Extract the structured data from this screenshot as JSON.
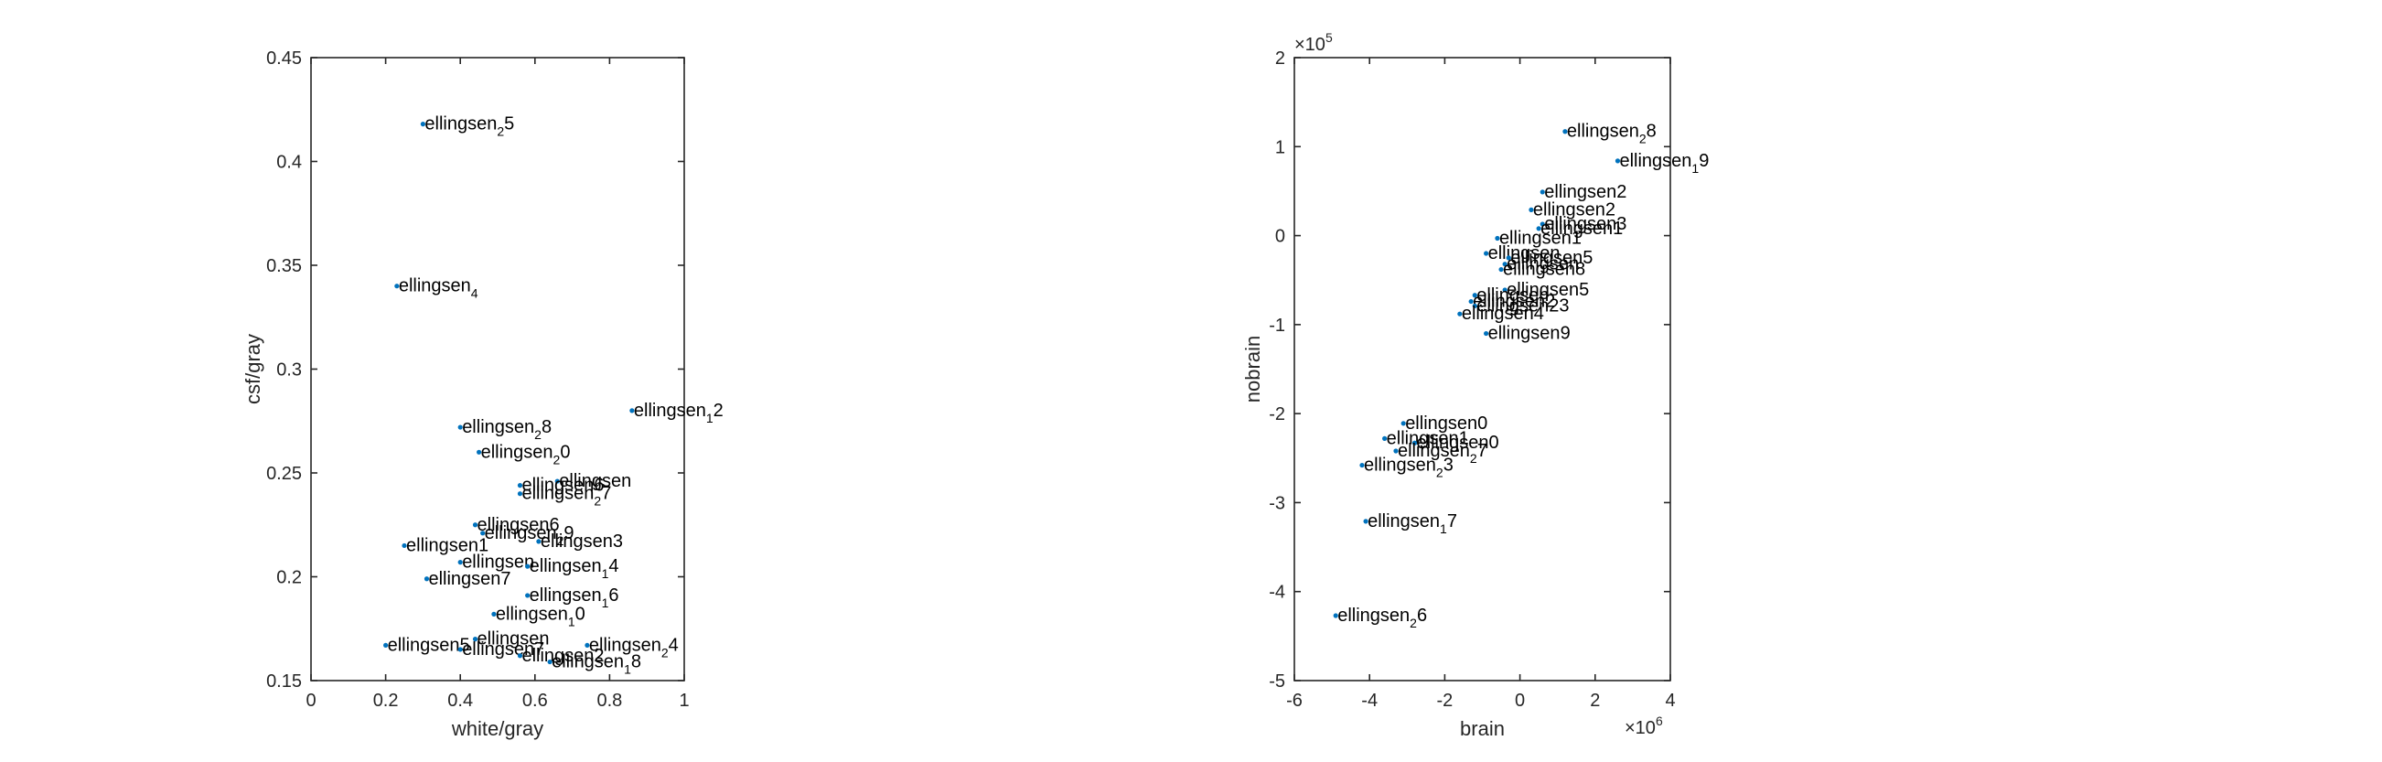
{
  "chart_data": [
    {
      "type": "scatter",
      "xlabel": "white/gray",
      "ylabel": "csf/gray",
      "xlim": [
        0,
        1
      ],
      "ylim": [
        0.15,
        0.45
      ],
      "xticks": [
        0,
        0.2,
        0.4,
        0.6,
        0.8,
        1
      ],
      "xtick_labels": [
        "0",
        "0.2",
        "0.4",
        "0.6",
        "0.8",
        "1"
      ],
      "yticks": [
        0.15,
        0.2,
        0.25,
        0.3,
        0.35,
        0.4,
        0.45
      ],
      "ytick_labels": [
        "0.15",
        "0.2",
        "0.25",
        "0.3",
        "0.35",
        "0.4",
        "0.45"
      ],
      "grid": false,
      "points": [
        {
          "x": 0.3,
          "y": 0.418,
          "label": "ellingsen",
          "sub": "2",
          "suffix": "5"
        },
        {
          "x": 0.23,
          "y": 0.34,
          "label": "ellingsen",
          "sub": "4",
          "suffix": ""
        },
        {
          "x": 0.86,
          "y": 0.28,
          "label": "ellingsen",
          "sub": "1",
          "suffix": "2"
        },
        {
          "x": 0.4,
          "y": 0.272,
          "label": "ellingsen",
          "sub": "2",
          "suffix": "8"
        },
        {
          "x": 0.45,
          "y": 0.26,
          "label": "ellingsen",
          "sub": "2",
          "suffix": "0"
        },
        {
          "x": 0.66,
          "y": 0.246,
          "label": "ellingsen",
          "sub": "",
          "suffix": ""
        },
        {
          "x": 0.56,
          "y": 0.244,
          "label": "ellingsen",
          "sub": "",
          "suffix": "6"
        },
        {
          "x": 0.56,
          "y": 0.24,
          "label": "ellingsen",
          "sub": "2",
          "suffix": "7"
        },
        {
          "x": 0.44,
          "y": 0.225,
          "label": "ellingsen",
          "sub": "",
          "suffix": "6"
        },
        {
          "x": 0.46,
          "y": 0.221,
          "label": "ellingsen",
          "sub": "2",
          "suffix": "9"
        },
        {
          "x": 0.61,
          "y": 0.217,
          "label": "ellingsen",
          "sub": "",
          "suffix": "3"
        },
        {
          "x": 0.25,
          "y": 0.215,
          "label": "ellingsen",
          "sub": "",
          "suffix": "1"
        },
        {
          "x": 0.4,
          "y": 0.207,
          "label": "ellingsen",
          "sub": "",
          "suffix": ""
        },
        {
          "x": 0.58,
          "y": 0.205,
          "label": "ellingsen",
          "sub": "1",
          "suffix": "4"
        },
        {
          "x": 0.31,
          "y": 0.199,
          "label": "ellingsen",
          "sub": "",
          "suffix": "7"
        },
        {
          "x": 0.58,
          "y": 0.191,
          "label": "ellingsen",
          "sub": "1",
          "suffix": "6"
        },
        {
          "x": 0.49,
          "y": 0.182,
          "label": "ellingsen",
          "sub": "1",
          "suffix": "0"
        },
        {
          "x": 0.44,
          "y": 0.17,
          "label": "ellingsen",
          "sub": "",
          "suffix": ""
        },
        {
          "x": 0.2,
          "y": 0.167,
          "label": "ellingsen",
          "sub": "",
          "suffix": "5"
        },
        {
          "x": 0.74,
          "y": 0.167,
          "label": "ellingsen",
          "sub": "2",
          "suffix": "4"
        },
        {
          "x": 0.4,
          "y": 0.165,
          "label": "ellingsen",
          "sub": "",
          "suffix": "7"
        },
        {
          "x": 0.56,
          "y": 0.162,
          "label": "ellingsen",
          "sub": "",
          "suffix": "2"
        },
        {
          "x": 0.64,
          "y": 0.159,
          "label": "ellingsen",
          "sub": "1",
          "suffix": "8"
        }
      ]
    },
    {
      "type": "scatter",
      "xlabel": "brain",
      "ylabel": "nobrain",
      "xlim": [
        -6,
        4
      ],
      "ylim": [
        -5,
        2
      ],
      "x_exponent": "6",
      "y_exponent": "5",
      "xticks": [
        -6,
        -4,
        -2,
        0,
        2,
        4
      ],
      "xtick_labels": [
        "-6",
        "-4",
        "-2",
        "0",
        "2",
        "4"
      ],
      "yticks": [
        -5,
        -4,
        -3,
        -2,
        -1,
        0,
        1,
        2
      ],
      "ytick_labels": [
        "-5",
        "-4",
        "-3",
        "-2",
        "-1",
        "0",
        "1",
        "2"
      ],
      "grid": false,
      "points": [
        {
          "x": 1.2,
          "y": 1.17,
          "label": "ellingsen",
          "sub": "2",
          "suffix": "8"
        },
        {
          "x": 2.6,
          "y": 0.84,
          "label": "ellingsen",
          "sub": "1",
          "suffix": "9"
        },
        {
          "x": 0.6,
          "y": 0.49,
          "label": "ellingsen",
          "sub": "",
          "suffix": "2"
        },
        {
          "x": 0.3,
          "y": 0.29,
          "label": "ellingsen",
          "sub": "",
          "suffix": "2"
        },
        {
          "x": 0.6,
          "y": 0.13,
          "label": "ellingsen",
          "sub": "",
          "suffix": "3"
        },
        {
          "x": 0.5,
          "y": 0.08,
          "label": "ellingsen",
          "sub": "",
          "suffix": "1"
        },
        {
          "x": -0.6,
          "y": -0.03,
          "label": "ellingsen",
          "sub": "",
          "suffix": "1"
        },
        {
          "x": -0.9,
          "y": -0.2,
          "label": "ellingsen",
          "sub": "",
          "suffix": ""
        },
        {
          "x": -0.3,
          "y": -0.25,
          "label": "ellingsen",
          "sub": "",
          "suffix": "5"
        },
        {
          "x": -0.4,
          "y": -0.32,
          "label": "ellingsen",
          "sub": "",
          "suffix": ""
        },
        {
          "x": -0.5,
          "y": -0.38,
          "label": "ellingsen",
          "sub": "",
          "suffix": "8"
        },
        {
          "x": -0.4,
          "y": -0.61,
          "label": "ellingsen",
          "sub": "",
          "suffix": "5"
        },
        {
          "x": -1.2,
          "y": -0.67,
          "label": "ellingsen",
          "sub": "",
          "suffix": ""
        },
        {
          "x": -1.3,
          "y": -0.74,
          "label": "ellingsen",
          "sub": "",
          "suffix": "2"
        },
        {
          "x": -1.2,
          "y": -0.79,
          "label": "ellingsen",
          "sub": "",
          "suffix": "23"
        },
        {
          "x": -1.6,
          "y": -0.88,
          "label": "ellingsen",
          "sub": "",
          "suffix": "4"
        },
        {
          "x": -0.9,
          "y": -1.1,
          "label": "ellingsen",
          "sub": "",
          "suffix": "9"
        },
        {
          "x": -3.1,
          "y": -2.11,
          "label": "ellingsen",
          "sub": "",
          "suffix": "0"
        },
        {
          "x": -3.6,
          "y": -2.28,
          "label": "ellingsen",
          "sub": "",
          "suffix": "1"
        },
        {
          "x": -2.8,
          "y": -2.33,
          "label": "ellingsen",
          "sub": "",
          "suffix": "0"
        },
        {
          "x": -3.3,
          "y": -2.42,
          "label": "ellingsen",
          "sub": "2",
          "suffix": "7"
        },
        {
          "x": -4.2,
          "y": -2.58,
          "label": "ellingsen",
          "sub": "2",
          "suffix": "3"
        },
        {
          "x": -4.1,
          "y": -3.21,
          "label": "ellingsen",
          "sub": "1",
          "suffix": "7"
        },
        {
          "x": -4.9,
          "y": -4.27,
          "label": "ellingsen",
          "sub": "2",
          "suffix": "6"
        }
      ]
    }
  ]
}
